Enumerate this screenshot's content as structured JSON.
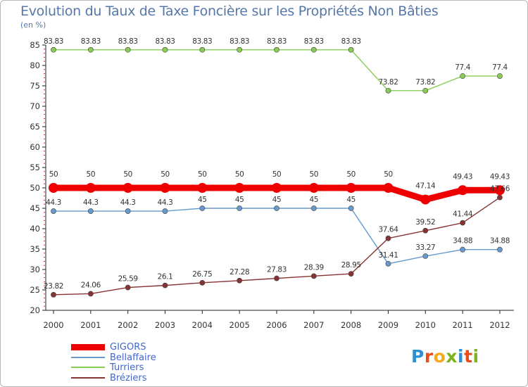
{
  "title": "Evolution du Taux de Taxe Foncière sur les Propriétés Non Bâties",
  "unit_label": "(en %)",
  "logo": {
    "text": "Proxiti",
    "colors": [
      "#2f8fcf",
      "#e84e1b",
      "#f7a81b",
      "#7ab51d",
      "#2f8fcf",
      "#e84e1b",
      "#7ab51d"
    ]
  },
  "chart_data": {
    "type": "line",
    "title": "Evolution du Taux de Taxe Foncière sur les Propriétés Non Bâties",
    "ylabel": "(en %)",
    "xlabel": "",
    "ylim": [
      20,
      85
    ],
    "yticks": [
      20,
      25,
      30,
      35,
      40,
      45,
      50,
      55,
      60,
      65,
      70,
      75,
      80,
      85
    ],
    "x": [
      "2000",
      "2001",
      "2002",
      "2003",
      "2004",
      "2005",
      "2006",
      "2007",
      "2008",
      "2009",
      "2010",
      "2011",
      "2012"
    ],
    "series": [
      {
        "name": "GIGORS",
        "color": "#ee0000",
        "values": [
          50,
          50,
          50,
          50,
          50,
          50,
          50,
          50,
          50,
          50,
          47.14,
          49.43,
          49.43
        ],
        "labels": [
          "50",
          "50",
          "50",
          "50",
          "50",
          "50",
          "50",
          "50",
          "50",
          "50",
          "47.14",
          "49.43",
          "49.43"
        ]
      },
      {
        "name": "Bellaffaire",
        "color": "#6699cc",
        "values": [
          44.3,
          44.3,
          44.3,
          44.3,
          45,
          45,
          45,
          45,
          45,
          31.41,
          33.27,
          34.88,
          34.88
        ],
        "labels": [
          "44.3",
          "44.3",
          "44.3",
          "44.3",
          "45",
          "45",
          "45",
          "45",
          "45",
          "31.41",
          "33.27",
          "34.88",
          "34.88"
        ]
      },
      {
        "name": "Turriers",
        "color": "#88cc55",
        "values": [
          83.83,
          83.83,
          83.83,
          83.83,
          83.83,
          83.83,
          83.83,
          83.83,
          83.83,
          73.82,
          73.82,
          77.4,
          77.4
        ],
        "labels": [
          "83.83",
          "83.83",
          "83.83",
          "83.83",
          "83.83",
          "83.83",
          "83.83",
          "83.83",
          "83.83",
          "73.82",
          "73.82",
          "77.4",
          "77.4"
        ]
      },
      {
        "name": "Bréziers",
        "color": "#883333",
        "values": [
          23.82,
          24.06,
          25.59,
          26.1,
          26.75,
          27.28,
          27.83,
          28.39,
          28.95,
          37.64,
          39.52,
          41.44,
          47.66
        ],
        "labels": [
          "23.82",
          "24.06",
          "25.59",
          "26.1",
          "26.75",
          "27.28",
          "27.83",
          "28.39",
          "28.95",
          "37.64",
          "39.52",
          "41.44",
          "47.66"
        ]
      }
    ],
    "legend": "bottom-left",
    "grid": false
  }
}
